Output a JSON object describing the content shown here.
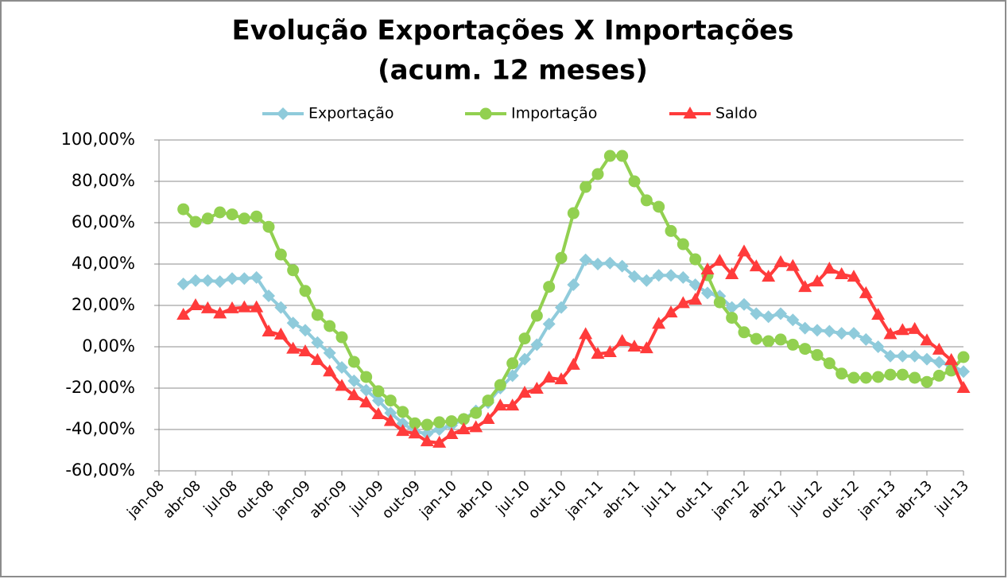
{
  "chart_data": {
    "type": "line",
    "title": "Evolução Exportações X Importações",
    "subtitle": "(acum. 12 meses)",
    "categories": [
      "jan-08",
      null,
      null,
      "abr-08",
      null,
      null,
      "jul-08",
      null,
      null,
      "out-08",
      null,
      null,
      "jan-09",
      null,
      null,
      "abr-09",
      null,
      null,
      "jul-09",
      null,
      null,
      "out-09",
      null,
      null,
      "jan-10",
      null,
      null,
      "abr-10",
      null,
      null,
      "jul-10",
      null,
      null,
      "out-10",
      null,
      null,
      "jan-11",
      null,
      null,
      "abr-11",
      null,
      null,
      "jul-11",
      null,
      null,
      "out-11",
      null,
      null,
      "jan-12",
      null,
      null,
      "abr-12",
      null,
      null,
      "jul-12",
      null,
      null,
      "out-12",
      null,
      null,
      "jan-13",
      null,
      null,
      "abr-13",
      null,
      null,
      "jul-13"
    ],
    "series": [
      {
        "name": "Exportação",
        "color": "#8fcbdb",
        "marker": "diamond",
        "values": [
          null,
          null,
          30.4,
          32,
          32,
          31.5,
          33,
          33,
          33.5,
          24.6,
          19,
          11.5,
          8,
          2,
          -3,
          -10,
          -16.5,
          -21,
          -26,
          -32,
          -37,
          -41,
          -42,
          -40,
          -38,
          -35,
          -31,
          -27,
          -20,
          -14,
          -6,
          1,
          11,
          19,
          30,
          42,
          40,
          40.5,
          39,
          34,
          32,
          34.5,
          34.5,
          33.5,
          30,
          26,
          24.5,
          19,
          20.5,
          16,
          14.5,
          16,
          13,
          9,
          8,
          7.5,
          6.5,
          6.5,
          3.5,
          0,
          -4.5,
          -4.5,
          -4.5,
          -6,
          -7.5,
          -9,
          -12
        ]
      },
      {
        "name": "Importação",
        "color": "#92d050",
        "marker": "circle",
        "values": [
          null,
          null,
          66.5,
          60.4,
          62,
          65,
          64,
          62,
          63,
          58,
          44.6,
          37,
          27,
          15.4,
          10,
          4.6,
          -7.3,
          -14.6,
          -21.5,
          -26,
          -31.5,
          -37,
          -37.7,
          -36.5,
          -36,
          -35,
          -32,
          -26,
          -18.5,
          -8,
          4,
          15,
          29,
          43,
          64.6,
          77.3,
          83.5,
          92.3,
          92.3,
          80,
          70.8,
          67.7,
          56,
          49.6,
          42.3,
          34.6,
          21.5,
          14,
          7,
          3.8,
          2.7,
          3.5,
          1,
          -1,
          -4,
          -8,
          -13,
          -15,
          -15,
          -14.6,
          -13.5,
          -13.5,
          -15,
          -17,
          -14,
          -11.5,
          -5
        ]
      },
      {
        "name": "Saldo",
        "color": "#ff3b3b",
        "marker": "triangle",
        "values": [
          null,
          null,
          15.4,
          20,
          18.5,
          16,
          18.5,
          19,
          19,
          7.3,
          5.8,
          -1,
          -2.3,
          -6.5,
          -12,
          -19,
          -23.5,
          -27,
          -32.7,
          -36,
          -40.8,
          -42,
          -45.8,
          -46.5,
          -42.3,
          -40,
          -39,
          -35,
          -28.5,
          -28.5,
          -22.3,
          -20.4,
          -15,
          -15.8,
          -8.8,
          6,
          -3.5,
          -2.7,
          2.7,
          0,
          -0.8,
          11,
          16.5,
          21,
          22.7,
          37.3,
          41.5,
          35,
          46,
          38.8,
          33.8,
          40.8,
          39,
          28.8,
          31.5,
          37.7,
          35,
          33.8,
          25.8,
          15.4,
          6,
          8,
          8.5,
          3,
          -1.5,
          -6.5,
          -20
        ]
      }
    ],
    "ylim": [
      -60,
      100
    ],
    "yticks": [
      {
        "value": -60,
        "label": "-60,00%"
      },
      {
        "value": -40,
        "label": "-40,00%"
      },
      {
        "value": -20,
        "label": "-20,00%"
      },
      {
        "value": 0,
        "label": "0,00%"
      },
      {
        "value": 20,
        "label": "20,00%"
      },
      {
        "value": 40,
        "label": "40,00%"
      },
      {
        "value": 60,
        "label": "60,00%"
      },
      {
        "value": 80,
        "label": "80,00%"
      },
      {
        "value": 100,
        "label": "100,00%"
      }
    ],
    "grid": true,
    "legend": "top"
  }
}
